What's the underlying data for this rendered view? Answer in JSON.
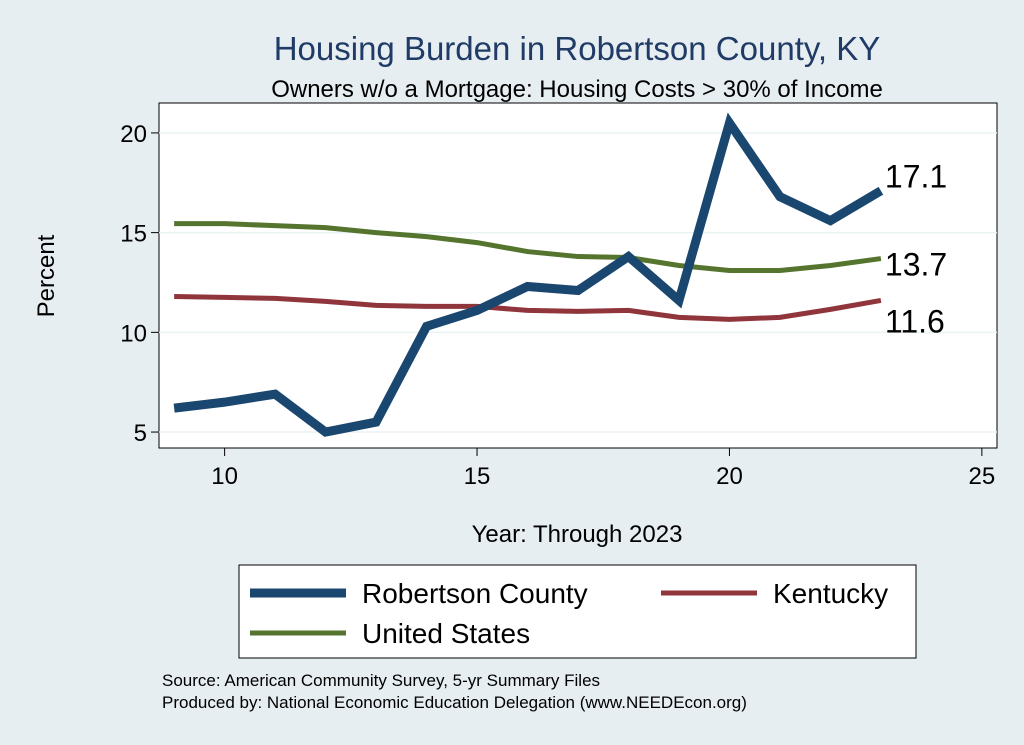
{
  "chart_data": {
    "type": "line",
    "title": "Housing Burden in Robertson County, KY",
    "subtitle": "Owners w/o a Mortgage: Housing Costs > 30% of Income",
    "xlabel": "Year: Through 2023",
    "ylabel": "Percent",
    "xlim": [
      8.7,
      25.3
    ],
    "ylim": [
      4.2,
      21.5
    ],
    "xticks": [
      10,
      15,
      20,
      25
    ],
    "yticks": [
      5,
      10,
      15,
      20
    ],
    "grid": true,
    "legend_position": "bottom",
    "x": [
      9,
      10,
      11,
      12,
      13,
      14,
      15,
      16,
      17,
      18,
      19,
      20,
      21,
      22,
      23
    ],
    "series": [
      {
        "name": "Robertson County",
        "color": "#1a476f",
        "values": [
          6.2,
          6.5,
          6.9,
          5.0,
          5.5,
          10.3,
          11.1,
          12.3,
          12.1,
          13.8,
          11.6,
          20.5,
          16.8,
          15.6,
          17.1
        ],
        "end_label": "17.1"
      },
      {
        "name": "Kentucky",
        "color": "#90353b",
        "values": [
          11.8,
          11.75,
          11.7,
          11.55,
          11.35,
          11.3,
          11.3,
          11.1,
          11.05,
          11.1,
          10.75,
          10.65,
          10.75,
          11.15,
          11.6
        ],
        "end_label": "11.6"
      },
      {
        "name": "United States",
        "color": "#55752f",
        "values": [
          15.45,
          15.45,
          15.35,
          15.25,
          15.0,
          14.8,
          14.5,
          14.05,
          13.8,
          13.75,
          13.35,
          13.1,
          13.1,
          13.35,
          13.7
        ],
        "end_label": "13.7"
      }
    ]
  },
  "source": {
    "line1": "Source: American Community Survey, 5-yr Summary Files",
    "line2": "Produced by: National Economic Education Delegation (www.NEEDEcon.org)"
  }
}
